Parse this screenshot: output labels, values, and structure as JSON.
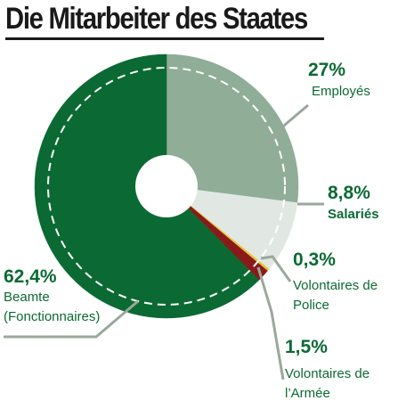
{
  "title": "Die Mitarbeiter des Staates",
  "colors": {
    "title": "#1a1a1a",
    "label_text": "#0b6a33",
    "leader_line": "#9aa89d",
    "dashed_ring": "#ffffff",
    "employes": "#8fad97",
    "salaries": "#e1e8e3",
    "police": "#e8c53a",
    "armee": "#8a1a1a",
    "beamte": "#0b6a33"
  },
  "chart_data": {
    "type": "pie",
    "variant": "donut",
    "title": "Die Mitarbeiter des Staates",
    "start_angle": "12 o'clock",
    "direction": "clockwise",
    "slices": [
      {
        "key": "employes",
        "label": "Employés",
        "value": 27,
        "value_label": "27%",
        "color": "#8fad97"
      },
      {
        "key": "salaries",
        "label": "Salariés",
        "value": 8.8,
        "value_label": "8,8%",
        "color": "#e1e8e3"
      },
      {
        "key": "police",
        "label": "Volontaires de Police",
        "value": 0.3,
        "value_label": "0,3%",
        "color": "#e8c53a"
      },
      {
        "key": "armee",
        "label": "Volontaires de l'Armée",
        "value": 1.5,
        "value_label": "1,5%",
        "color": "#8a1a1a"
      },
      {
        "key": "beamte",
        "label": "Beamte (Fonctionnaires)",
        "value": 62.4,
        "value_label": "62,4%",
        "color": "#0b6a33"
      }
    ],
    "labels": {
      "employes": {
        "pct": "27%",
        "lines": [
          "Employés"
        ]
      },
      "salaries": {
        "pct": "8,8%",
        "lines": [
          "Salariés"
        ]
      },
      "police": {
        "pct": "0,3%",
        "lines": [
          "Volontaires de",
          "Police"
        ]
      },
      "armee": {
        "pct": "1,5%",
        "lines": [
          "Volontaires de",
          "l’Armée"
        ]
      },
      "beamte": {
        "pct": "62,4%",
        "lines": [
          "Beamte",
          "(Fonctionnaires)"
        ]
      }
    }
  }
}
